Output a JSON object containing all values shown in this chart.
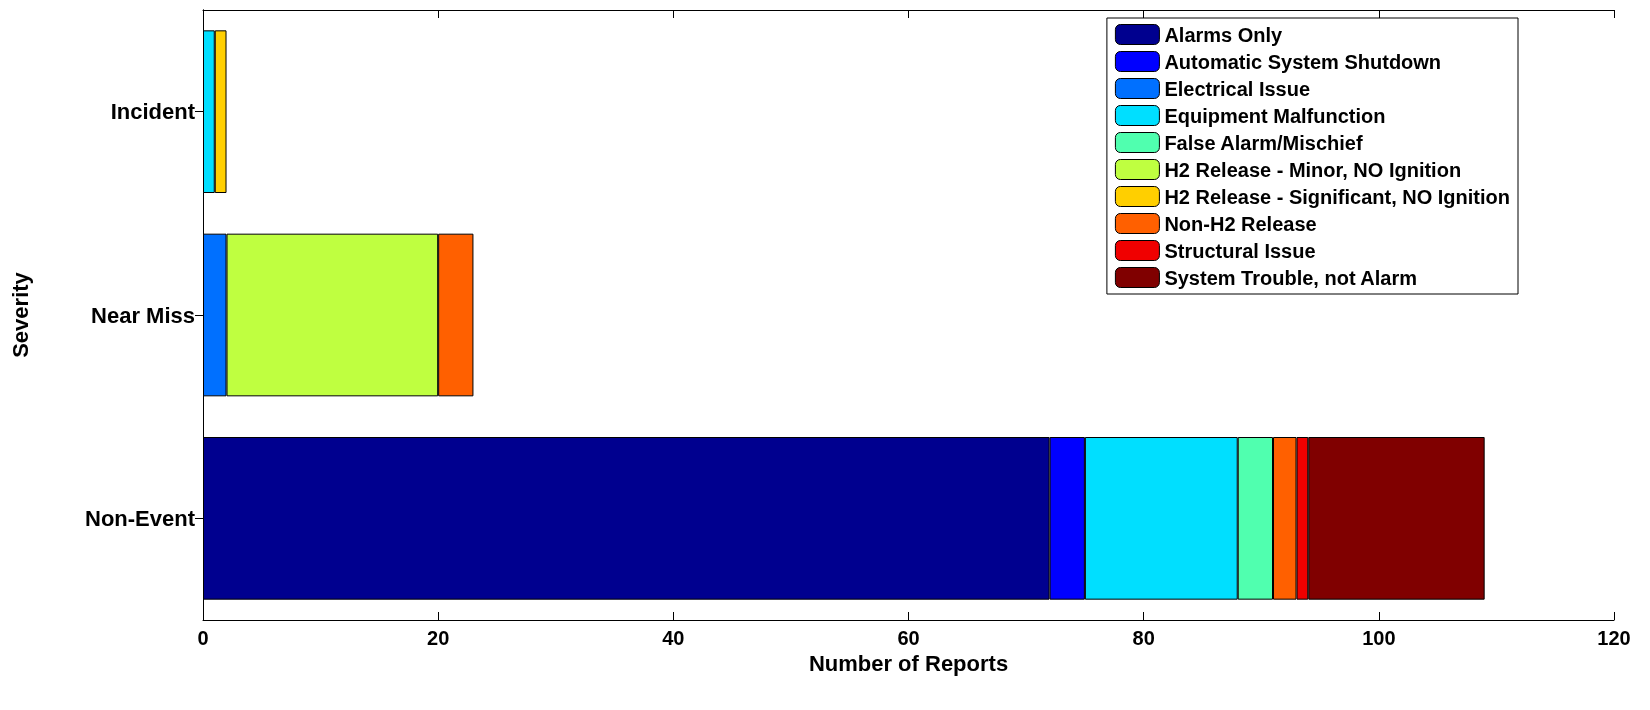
{
  "chart_data": {
    "type": "bar",
    "orientation": "horizontal",
    "stacked": true,
    "xlabel": "Number of Reports",
    "ylabel": "Severity",
    "categories": [
      "Incident",
      "Near Miss",
      "Non-Event"
    ],
    "series": [
      {
        "name": "Alarms Only",
        "color": "#00008f",
        "values": [
          null,
          null,
          72
        ]
      },
      {
        "name": "Automatic System Shutdown",
        "color": "#0000ff",
        "values": [
          null,
          null,
          3
        ]
      },
      {
        "name": "Electrical Issue",
        "color": "#0070ff",
        "values": [
          null,
          2,
          null
        ]
      },
      {
        "name": "Equipment Malfunction",
        "color": "#00dfff",
        "values": [
          1,
          null,
          13
        ]
      },
      {
        "name": "False Alarm/Mischief",
        "color": "#50ffaf",
        "values": [
          null,
          null,
          3
        ]
      },
      {
        "name": "H2 Release - Minor, NO Ignition",
        "color": "#bfff40",
        "values": [
          null,
          18,
          null
        ]
      },
      {
        "name": "H2 Release - Significant, NO Ignition",
        "color": "#ffcf00",
        "values": [
          1,
          null,
          null
        ]
      },
      {
        "name": "Non-H2 Release",
        "color": "#ff6000",
        "values": [
          null,
          3,
          2
        ]
      },
      {
        "name": "Structural Issue",
        "color": "#f00000",
        "values": [
          null,
          null,
          1
        ]
      },
      {
        "name": "System Trouble, not Alarm",
        "color": "#800000",
        "values": [
          null,
          null,
          15
        ]
      }
    ],
    "xlim": [
      0,
      120
    ],
    "xticks": [
      0,
      20,
      40,
      60,
      80,
      100,
      120
    ],
    "grid": false,
    "legend": "top right"
  }
}
